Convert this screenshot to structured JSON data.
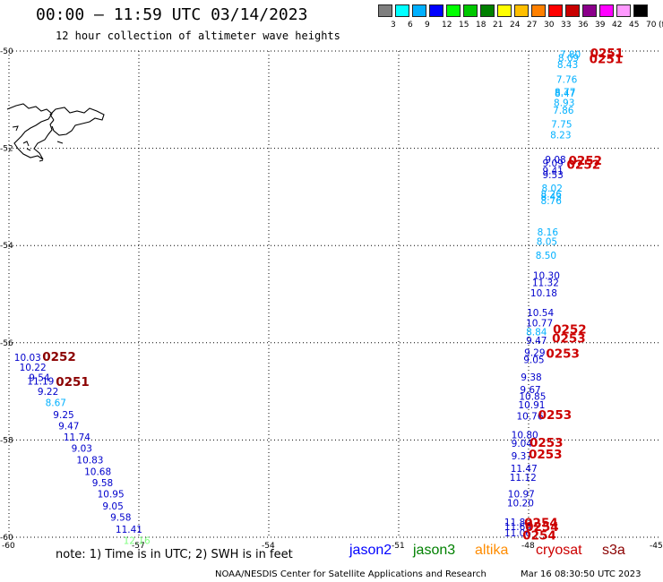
{
  "header": {
    "title": "00:00 – 11:59 UTC 03/14/2023",
    "subtitle": "12 hour collection of altimeter wave heights"
  },
  "colorbar": {
    "labels": [
      "3",
      "6",
      "9",
      "12",
      "15",
      "18",
      "21",
      "24",
      "27",
      "30",
      "33",
      "36",
      "39",
      "42",
      "45",
      "70",
      "(ft)"
    ],
    "colors": [
      "#7f7f7f",
      "#00ffff",
      "#00b0ff",
      "#0000ff",
      "#00ff00",
      "#00c800",
      "#008000",
      "#ffff00",
      "#ffbf00",
      "#ff8000",
      "#ff0000",
      "#c80000",
      "#8b008b",
      "#ff00ff",
      "#ff99ff",
      "#000000"
    ]
  },
  "axes": {
    "x_ticks": [
      "-60",
      "-57",
      "-54",
      "-51",
      "-48",
      "-45"
    ],
    "y_ticks": [
      "-50",
      "-52",
      "-54",
      "-56",
      "-58",
      "-60"
    ]
  },
  "map_data": {
    "lon_range": [
      -60,
      -45
    ],
    "lat_range": [
      -60,
      -50
    ],
    "readings": [
      {
        "v": "7.80",
        "lon": -47.28,
        "lat": -50.06,
        "c": "#00b0ff"
      },
      {
        "v": "8.09",
        "lon": -47.32,
        "lat": -50.14,
        "c": "#00b0ff"
      },
      {
        "v": "8.43",
        "lon": -47.34,
        "lat": -50.28,
        "c": "#00b0ff"
      },
      {
        "v": "7.76",
        "lon": -47.36,
        "lat": -50.58,
        "c": "#00b0ff"
      },
      {
        "v": "8.77",
        "lon": -47.4,
        "lat": -50.84,
        "c": "#00b0ff"
      },
      {
        "v": "8.47",
        "lon": -47.4,
        "lat": -50.87,
        "c": "#00b0ff"
      },
      {
        "v": "8.93",
        "lon": -47.42,
        "lat": -51.06,
        "c": "#00b0ff"
      },
      {
        "v": "7.86",
        "lon": -47.44,
        "lat": -51.22,
        "c": "#00b0ff"
      },
      {
        "v": "7.75",
        "lon": -47.48,
        "lat": -51.5,
        "c": "#00b0ff"
      },
      {
        "v": "8.23",
        "lon": -47.5,
        "lat": -51.72,
        "c": "#00b0ff"
      },
      {
        "v": "9.08",
        "lon": -47.62,
        "lat": -52.23,
        "c": "#0000cc"
      },
      {
        "v": "9.09",
        "lon": -47.68,
        "lat": -52.3,
        "c": "#0000cc"
      },
      {
        "v": "9.41",
        "lon": -47.68,
        "lat": -52.46,
        "c": "#0000cc"
      },
      {
        "v": "9.53",
        "lon": -47.68,
        "lat": -52.54,
        "c": "#0000cc"
      },
      {
        "v": "8.02",
        "lon": -47.7,
        "lat": -52.82,
        "c": "#00b0ff"
      },
      {
        "v": "8.26",
        "lon": -47.72,
        "lat": -52.94,
        "c": "#00b0ff"
      },
      {
        "v": "8.43",
        "lon": -47.72,
        "lat": -52.99,
        "c": "#00b0ff"
      },
      {
        "v": "8.76",
        "lon": -47.72,
        "lat": -53.08,
        "c": "#00b0ff"
      },
      {
        "v": "8.16",
        "lon": -47.8,
        "lat": -53.72,
        "c": "#00b0ff"
      },
      {
        "v": "8.05",
        "lon": -47.82,
        "lat": -53.91,
        "c": "#00b0ff"
      },
      {
        "v": "8.50",
        "lon": -47.84,
        "lat": -54.2,
        "c": "#00b0ff"
      },
      {
        "v": "10.30",
        "lon": -47.9,
        "lat": -54.61,
        "c": "#0000cc"
      },
      {
        "v": "11.32",
        "lon": -47.92,
        "lat": -54.76,
        "c": "#0000cc"
      },
      {
        "v": "10.18",
        "lon": -47.96,
        "lat": -54.97,
        "c": "#0000cc"
      },
      {
        "v": "10.54",
        "lon": -48.04,
        "lat": -55.38,
        "c": "#0000cc"
      },
      {
        "v": "10.77",
        "lon": -48.06,
        "lat": -55.59,
        "c": "#0000cc"
      },
      {
        "v": "8.84",
        "lon": -48.06,
        "lat": -55.77,
        "c": "#00b0ff"
      },
      {
        "v": "9.47",
        "lon": -48.06,
        "lat": -55.95,
        "c": "#0000cc"
      },
      {
        "v": "9.29",
        "lon": -48.1,
        "lat": -56.2,
        "c": "#0000cc"
      },
      {
        "v": "9.05",
        "lon": -48.12,
        "lat": -56.34,
        "c": "#0000cc"
      },
      {
        "v": "9.38",
        "lon": -48.18,
        "lat": -56.7,
        "c": "#0000cc"
      },
      {
        "v": "9.67",
        "lon": -48.2,
        "lat": -56.96,
        "c": "#0000cc"
      },
      {
        "v": "10.85",
        "lon": -48.22,
        "lat": -57.1,
        "c": "#0000cc"
      },
      {
        "v": "10.91",
        "lon": -48.24,
        "lat": -57.27,
        "c": "#0000cc"
      },
      {
        "v": "10.76",
        "lon": -48.28,
        "lat": -57.5,
        "c": "#0000cc"
      },
      {
        "v": "10.80",
        "lon": -48.4,
        "lat": -57.89,
        "c": "#0000cc"
      },
      {
        "v": "9.04",
        "lon": -48.4,
        "lat": -58.07,
        "c": "#0000cc"
      },
      {
        "v": "9.37",
        "lon": -48.4,
        "lat": -58.32,
        "c": "#0000cc"
      },
      {
        "v": "11.47",
        "lon": -48.42,
        "lat": -58.58,
        "c": "#0000cc"
      },
      {
        "v": "11.12",
        "lon": -48.44,
        "lat": -58.77,
        "c": "#0000cc"
      },
      {
        "v": "10.97",
        "lon": -48.48,
        "lat": -59.11,
        "c": "#0000cc"
      },
      {
        "v": "10.20",
        "lon": -48.5,
        "lat": -59.29,
        "c": "#0000cc"
      },
      {
        "v": "11.80",
        "lon": -48.56,
        "lat": -59.69,
        "c": "#0000cc"
      },
      {
        "v": "11.60",
        "lon": -48.56,
        "lat": -59.78,
        "c": "#0000cc"
      },
      {
        "v": "11.06",
        "lon": -48.56,
        "lat": -59.91,
        "c": "#0000cc"
      },
      {
        "v": "10.03",
        "lon": -59.88,
        "lat": -56.3,
        "c": "#0000cc"
      },
      {
        "v": "10.22",
        "lon": -59.76,
        "lat": -56.5,
        "c": "#0000cc"
      },
      {
        "v": "9.54",
        "lon": -59.54,
        "lat": -56.71,
        "c": "#0000cc"
      },
      {
        "v": "11.19",
        "lon": -59.58,
        "lat": -56.79,
        "c": "#0000cc"
      },
      {
        "v": "9.22",
        "lon": -59.34,
        "lat": -57.0,
        "c": "#0000cc"
      },
      {
        "v": "8.67",
        "lon": -59.16,
        "lat": -57.23,
        "c": "#00b0ff"
      },
      {
        "v": "9.25",
        "lon": -58.98,
        "lat": -57.48,
        "c": "#0000cc"
      },
      {
        "v": "9.47",
        "lon": -58.86,
        "lat": -57.71,
        "c": "#0000cc"
      },
      {
        "v": "11.74",
        "lon": -58.74,
        "lat": -57.94,
        "c": "#0000cc"
      },
      {
        "v": "9.03",
        "lon": -58.56,
        "lat": -58.17,
        "c": "#0000cc"
      },
      {
        "v": "10.83",
        "lon": -58.44,
        "lat": -58.41,
        "c": "#0000cc"
      },
      {
        "v": "10.68",
        "lon": -58.26,
        "lat": -58.65,
        "c": "#0000cc"
      },
      {
        "v": "9.58",
        "lon": -58.08,
        "lat": -58.88,
        "c": "#0000cc"
      },
      {
        "v": "10.95",
        "lon": -57.96,
        "lat": -59.11,
        "c": "#0000cc"
      },
      {
        "v": "9.05",
        "lon": -57.84,
        "lat": -59.36,
        "c": "#0000cc"
      },
      {
        "v": "9.58",
        "lon": -57.66,
        "lat": -59.59,
        "c": "#0000cc"
      },
      {
        "v": "11.41",
        "lon": -57.54,
        "lat": -59.83,
        "c": "#0000cc"
      },
      {
        "v": "12.16",
        "lon": -57.36,
        "lat": -60.06,
        "c": "#80ff80"
      }
    ],
    "time_labels": [
      {
        "t": "0251",
        "lon": -46.58,
        "lat": -50.04,
        "c": "#cc0000"
      },
      {
        "t": "0251",
        "lon": -46.6,
        "lat": -50.16,
        "c": "#cc0000"
      },
      {
        "t": "0252",
        "lon": -47.08,
        "lat": -52.25,
        "c": "#cc0000"
      },
      {
        "t": "0252",
        "lon": -47.12,
        "lat": -52.33,
        "c": "#cc0000"
      },
      {
        "t": "0252",
        "lon": -47.44,
        "lat": -55.72,
        "c": "#cc0000"
      },
      {
        "t": "0253",
        "lon": -47.46,
        "lat": -55.9,
        "c": "#cc0000"
      },
      {
        "t": "0253",
        "lon": -47.6,
        "lat": -56.22,
        "c": "#cc0000"
      },
      {
        "t": "0253",
        "lon": -47.78,
        "lat": -57.48,
        "c": "#cc0000"
      },
      {
        "t": "0253",
        "lon": -47.98,
        "lat": -58.05,
        "c": "#cc0000"
      },
      {
        "t": "0253",
        "lon": -48.0,
        "lat": -58.29,
        "c": "#cc0000"
      },
      {
        "t": "0254",
        "lon": -48.1,
        "lat": -59.7,
        "c": "#cc0000"
      },
      {
        "t": "0254",
        "lon": -48.08,
        "lat": -59.78,
        "c": "#cc0000"
      },
      {
        "t": "0254",
        "lon": -48.14,
        "lat": -59.95,
        "c": "#cc0000"
      },
      {
        "t": "0252",
        "lon": -59.23,
        "lat": -56.28,
        "c": "#8b0000"
      },
      {
        "t": "0251",
        "lon": -58.92,
        "lat": -56.8,
        "c": "#8b0000"
      }
    ]
  },
  "legend": {
    "note": "note: 1) Time is in UTC; 2) SWH is in feet",
    "satellites": [
      {
        "name": "jason2",
        "color": "#0000ff"
      },
      {
        "name": "jason3",
        "color": "#008000"
      },
      {
        "name": "altika",
        "color": "#ff8c00"
      },
      {
        "name": "cryosat",
        "color": "#cc0000"
      },
      {
        "name": "s3a",
        "color": "#8b0000"
      }
    ]
  },
  "footer": {
    "credit": "NOAA/NESDIS Center for Satellite Applications and Research",
    "timestamp": "Mar 16 08:30:50 UTC 2023"
  }
}
